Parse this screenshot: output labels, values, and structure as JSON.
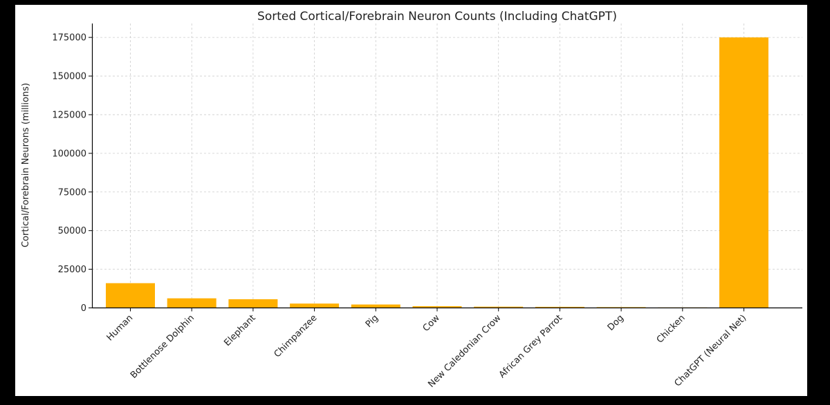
{
  "chart_data": {
    "type": "bar",
    "title": "Sorted Cortical/Forebrain Neuron Counts (Including ChatGPT)",
    "xlabel": "",
    "ylabel": "Cortical/Forebrain Neurons (millions)",
    "categories": [
      "Human",
      "Bottlenose Dolphin",
      "Elephant",
      "Chimpanzee",
      "Pig",
      "Cow",
      "New Caledonian Crow",
      "African Grey Parrot",
      "Dog",
      "Chicken",
      "ChatGPT (Neural Net)"
    ],
    "values": [
      16000,
      6200,
      5600,
      2800,
      2200,
      1100,
      800,
      700,
      500,
      300,
      175000
    ],
    "ylim": [
      0,
      184000
    ],
    "yticks": [
      0,
      25000,
      50000,
      75000,
      100000,
      125000,
      150000,
      175000
    ],
    "grid": true,
    "bar_color": "#ffb000"
  }
}
